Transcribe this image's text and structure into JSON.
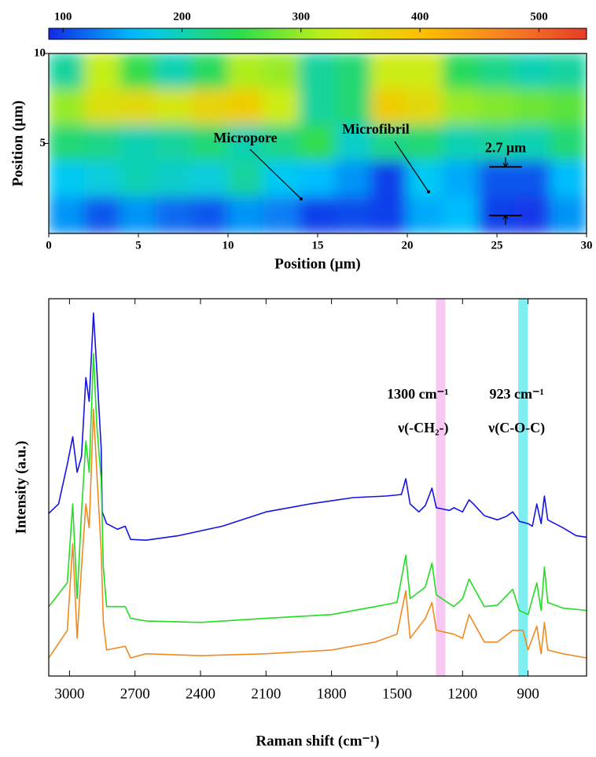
{
  "chart_data": [
    {
      "type": "heatmap",
      "colormap": "jet",
      "clim": [
        88,
        540
      ],
      "cticks": [
        100,
        200,
        300,
        400,
        500
      ],
      "xlim": [
        0,
        30
      ],
      "xticks": [
        0,
        5,
        10,
        15,
        20,
        25,
        30
      ],
      "ylim": [
        0,
        10
      ],
      "yticks": [
        5,
        10
      ],
      "xlabel": "Position (μm)",
      "ylabel": "Position (μm)",
      "z": [
        [
          210,
          320,
          250,
          200,
          240,
          310,
          300,
          210,
          230,
          330,
          330,
          240,
          220,
          200,
          210
        ],
        [
          300,
          350,
          360,
          340,
          370,
          380,
          330,
          210,
          230,
          380,
          360,
          300,
          290,
          280,
          270
        ],
        [
          230,
          220,
          200,
          210,
          230,
          200,
          220,
          250,
          190,
          220,
          230,
          200,
          210,
          200,
          230
        ],
        [
          170,
          180,
          200,
          190,
          180,
          210,
          170,
          160,
          140,
          100,
          170,
          150,
          110,
          110,
          160
        ],
        [
          140,
          110,
          140,
          120,
          110,
          140,
          130,
          100,
          105,
          100,
          150,
          160,
          100,
          95,
          140
        ]
      ],
      "annotations": [
        "Micropore",
        "Microfibril"
      ],
      "scale_bar": {
        "value": 2.7,
        "label": "2.7 μm"
      }
    },
    {
      "type": "line",
      "xlabel": "Raman shift (cm⁻¹)",
      "ylabel": "Intensity (a.u.)",
      "xlim": [
        3095,
        632
      ],
      "xticks": [
        3000,
        2700,
        2400,
        2100,
        1800,
        1500,
        1200,
        900
      ],
      "ylim": [
        0,
        100
      ],
      "bands": [
        {
          "value": 1300,
          "label": "1300 cm⁻¹",
          "sublabel": "ν(-CH₂-)",
          "color": "#f7c8f2"
        },
        {
          "value": 923,
          "label": "923 cm⁻¹",
          "sublabel": "ν(C-O-C)",
          "color": "#7eeef2"
        }
      ],
      "series": [
        {
          "color": "#1414e6",
          "x": [
            3095,
            3050,
            3010,
            2985,
            2965,
            2945,
            2925,
            2910,
            2890,
            2875,
            2855,
            2850,
            2830,
            2780,
            2745,
            2720,
            2650,
            2500,
            2300,
            2100,
            1900,
            1700,
            1550,
            1480,
            1460,
            1440,
            1400,
            1370,
            1340,
            1320,
            1260,
            1240,
            1200,
            1170,
            1150,
            1100,
            1040,
            1000,
            970,
            940,
            900,
            880,
            860,
            840,
            825,
            810,
            740,
            680,
            632
          ],
          "values": [
            43.1,
            45.6,
            56.1,
            63.4,
            54,
            58.2,
            79.1,
            72.8,
            96.2,
            81.2,
            60.3,
            43.5,
            40.4,
            38.9,
            39.7,
            36.2,
            36,
            37.2,
            39.7,
            43.5,
            45.6,
            47.3,
            47.7,
            48.1,
            52.3,
            45.6,
            43.5,
            45.2,
            49.8,
            44.6,
            43.9,
            44.6,
            43.5,
            46.7,
            45.6,
            42.5,
            41.4,
            42.3,
            43.5,
            41,
            40.4,
            39.7,
            45.6,
            40.4,
            47.7,
            41.4,
            39.3,
            37.2,
            36.8
          ]
        },
        {
          "color": "#22dd22",
          "x": [
            3095,
            3010,
            2985,
            2965,
            2945,
            2925,
            2910,
            2890,
            2875,
            2855,
            2845,
            2830,
            2745,
            2720,
            2650,
            2400,
            2100,
            1800,
            1600,
            1500,
            1460,
            1440,
            1370,
            1340,
            1320,
            1240,
            1200,
            1170,
            1150,
            1100,
            1040,
            970,
            940,
            900,
            860,
            840,
            825,
            810,
            740,
            632
          ],
          "values": [
            18.4,
            24.7,
            45.6,
            20.5,
            43.5,
            62.3,
            54,
            85.4,
            66.5,
            51.9,
            28.9,
            18.4,
            18.4,
            15.3,
            14.6,
            14.2,
            15.3,
            16.3,
            18.4,
            19.5,
            32,
            20.5,
            23.6,
            29.9,
            21.5,
            18.4,
            20.5,
            25.7,
            23.6,
            18.4,
            18.8,
            23,
            17.4,
            16.3,
            24.7,
            17.4,
            28.9,
            19.5,
            18,
            17.4
          ]
        },
        {
          "color": "#f08a20",
          "x": [
            3095,
            3010,
            2985,
            2965,
            2945,
            2925,
            2910,
            2890,
            2875,
            2855,
            2845,
            2830,
            2745,
            2720,
            2650,
            2400,
            2100,
            1800,
            1600,
            1500,
            1460,
            1440,
            1370,
            1340,
            1320,
            1240,
            1200,
            1170,
            1150,
            1100,
            1040,
            970,
            923,
            900,
            860,
            840,
            825,
            810,
            740,
            632
          ],
          "values": [
            4.8,
            12.1,
            35.1,
            10,
            28.9,
            45.6,
            39.3,
            70.7,
            54,
            33.1,
            14.2,
            6.9,
            7.9,
            4.8,
            5.9,
            5.4,
            5.9,
            6.9,
            9,
            11.1,
            22.6,
            10,
            15.3,
            19.5,
            12.1,
            11.1,
            10,
            16.3,
            14.2,
            9,
            9,
            12.1,
            12.1,
            6.9,
            13.2,
            5.9,
            14.2,
            6.9,
            5.9,
            4.8
          ]
        }
      ]
    }
  ]
}
